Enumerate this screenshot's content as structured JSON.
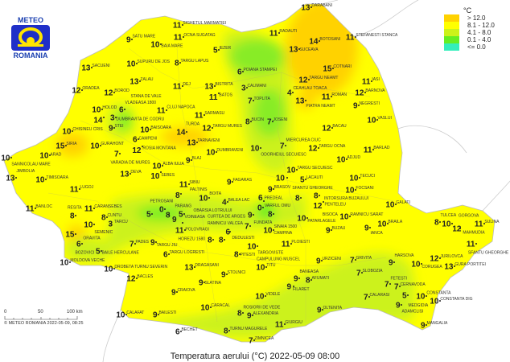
{
  "logo": {
    "top": "METEO",
    "bottom": "ROMANIA"
  },
  "legend": {
    "unit": "°C",
    "classes": [
      {
        "label": "> 12.0",
        "color": "#ffd200"
      },
      {
        "label": "8.1 - 12.0",
        "color": "#ffff00"
      },
      {
        "label": "4.1 - 8.0",
        "color": "#ccf21a"
      },
      {
        "label": "0.1 - 4.0",
        "color": "#66ee22"
      },
      {
        "label": "<= 0.0",
        "color": "#33eebb"
      }
    ]
  },
  "scale": {
    "ticks": [
      "0",
      "50",
      "100 km"
    ],
    "copyright": "© METEO ROMANIA 2022-05-09, 08:25"
  },
  "title": "Temperatura aerului (°C) 2022-05-09 08:00",
  "stations": [
    {
      "name": "SIGHETUL MARMATIEI",
      "value": 11
    },
    {
      "name": "SATU MARE",
      "value": 9
    },
    {
      "name": "BAIA MARE",
      "value": 10
    },
    {
      "name": "OCNA SUGATAG",
      "value": 11
    },
    {
      "name": "SUPURU DE JOS",
      "value": 10
    },
    {
      "name": "IEZER",
      "value": 5
    },
    {
      "name": "TARGU LAPUS",
      "value": 8
    },
    {
      "name": "POIANA STAMPEI",
      "value": 6
    },
    {
      "name": "DARABANI",
      "value": 13
    },
    {
      "name": "RADAUTI",
      "value": 11
    },
    {
      "name": "STEFANESTI STANCA",
      "value": 11
    },
    {
      "name": "BOTOSANI",
      "value": 14
    },
    {
      "name": "SUCEAVA",
      "value": 13
    },
    {
      "name": "COTNARI",
      "value": 15
    },
    {
      "name": "TARGU NEAMT",
      "value": 12
    },
    {
      "name": "IASI",
      "value": 11
    },
    {
      "name": "SACUENI",
      "value": 13
    },
    {
      "name": "ZALAU",
      "value": 13
    },
    {
      "name": "CALIMANI",
      "value": 3
    },
    {
      "name": "ORADEA",
      "value": 12
    },
    {
      "name": "BOROD",
      "value": 12
    },
    {
      "name": "VLADEASA 1800",
      "value": 6
    },
    {
      "name": "DEJ",
      "value": 11
    },
    {
      "name": "BISTRITA",
      "value": 13
    },
    {
      "name": "HOLOD",
      "value": 10
    },
    {
      "name": "DUMBRAVITA DE CODRU",
      "value": 14
    },
    {
      "name": "STANA DE VALE",
      "value": 3
    },
    {
      "name": "STEI",
      "value": 9
    },
    {
      "name": "CHISINEU CRIS",
      "value": 10
    },
    {
      "name": "CLUJ NAPOCA",
      "value": 11
    },
    {
      "name": "BATOS",
      "value": 11
    },
    {
      "name": "SARMASU",
      "value": 11
    },
    {
      "name": "TOPLITA",
      "value": 7
    },
    {
      "name": "CEAHLAU TOACA",
      "value": 4
    },
    {
      "name": "PIATRA NEAMT",
      "value": 13
    },
    {
      "name": "ROMAN",
      "value": 11
    },
    {
      "name": "BARNOVA",
      "value": 12
    },
    {
      "name": "NEGRESTI",
      "value": 9
    },
    {
      "name": "VASLUI",
      "value": 10
    },
    {
      "name": "BUCIN",
      "value": 8
    },
    {
      "name": "JOSENI",
      "value": 7
    },
    {
      "name": "BACAU",
      "value": 12
    },
    {
      "name": "BARLAD",
      "value": 11
    },
    {
      "name": "MIERCUREA CIUC",
      "value": 7
    },
    {
      "name": "ODORHEIUL SECUIESC",
      "value": 10
    },
    {
      "name": "TARGU SECUIESC",
      "value": 10
    },
    {
      "name": "TARGU OCNA",
      "value": 12
    },
    {
      "name": "ADJUD",
      "value": 10
    },
    {
      "name": "SIRIA",
      "value": 15
    },
    {
      "name": "ARAD",
      "value": 10
    },
    {
      "name": "SANNICOLAU MARE",
      "value": 10
    },
    {
      "name": "GURAHONT",
      "value": 10
    },
    {
      "name": "VARADIA DE MURES",
      "value": 7
    },
    {
      "name": "BAISOARA",
      "value": 10
    },
    {
      "name": "TURDA",
      "value": 14
    },
    {
      "name": "TARGU MURES",
      "value": 12
    },
    {
      "name": "TARNAVENI",
      "value": 13
    },
    {
      "name": "CAMPENI",
      "value": 6
    },
    {
      "name": "ROSIA MONTANA",
      "value": 12
    },
    {
      "name": "DUMBRAVENI",
      "value": 10
    },
    {
      "name": "BLAJ",
      "value": 9
    },
    {
      "name": "ALBA IULIA",
      "value": 10
    },
    {
      "name": "SEBES",
      "value": 10
    },
    {
      "name": "DEVA",
      "value": 13
    },
    {
      "name": "JIMBOLIA",
      "value": 13
    },
    {
      "name": "TIMISOARA",
      "value": 10
    },
    {
      "name": "LUGOJ",
      "value": 11
    },
    {
      "name": "BANLOC",
      "value": 11
    },
    {
      "name": "CARANSEBES",
      "value": 11
    },
    {
      "name": "RESITA",
      "value": 8
    },
    {
      "name": "CUNTU",
      "value": 8
    },
    {
      "name": "TARCU",
      "value": 3
    },
    {
      "name": "SEMENIC",
      "value": 10
    },
    {
      "name": "ORAVITA",
      "value": 15
    },
    {
      "name": "BOZOVICI",
      "value": 6
    },
    {
      "name": "BAILE HERCULANE",
      "value": 5
    },
    {
      "name": "MOLDOVA VECHE",
      "value": 10
    },
    {
      "name": "DROBETA TURNU SEVERIN",
      "value": 10
    },
    {
      "name": "SIBIU",
      "value": 11
    },
    {
      "name": "PALTINIS",
      "value": 8
    },
    {
      "name": "BOITA",
      "value": 10
    },
    {
      "name": "BALEA LAC",
      "value": 4
    },
    {
      "name": "FAGARAS",
      "value": 9
    },
    {
      "name": "FUNDATA",
      "value": 9
    },
    {
      "name": "VARFUL OMU",
      "value": 0
    },
    {
      "name": "PREDEAL",
      "value": 6
    },
    {
      "name": "SINAIA 1500",
      "value": 8
    },
    {
      "name": "BRASOV",
      "value": 9
    },
    {
      "name": "SFANTU GHEORGHE",
      "value": 10
    },
    {
      "name": "LACAUTI",
      "value": 5
    },
    {
      "name": "INTORSURA BUZAULUI",
      "value": 8
    },
    {
      "name": "PENTELEU",
      "value": 8
    },
    {
      "name": "BISOCA",
      "value": 12
    },
    {
      "name": "FOCSANI",
      "value": 10
    },
    {
      "name": "TECUCI",
      "value": 10
    },
    {
      "name": "RAMNICU SARAT",
      "value": 10
    },
    {
      "name": "PATARLAGELE",
      "value": 10
    },
    {
      "name": "BUZAU",
      "value": 9
    },
    {
      "name": "CAMPINA",
      "value": 10
    },
    {
      "name": "TARGOVISTE",
      "value": 10
    },
    {
      "name": "PLOIESTI",
      "value": 11
    },
    {
      "name": "IANCA",
      "value": 9
    },
    {
      "name": "GALATI",
      "value": 10
    },
    {
      "name": "BRAILA",
      "value": 10
    },
    {
      "name": "TULCEA",
      "value": 8
    },
    {
      "name": "GORGOVA",
      "value": 10
    },
    {
      "name": "MAHMUDIA",
      "value": 12
    },
    {
      "name": "SULINA",
      "value": 11
    },
    {
      "name": "SFANTU GHEORGHE",
      "value": 11
    },
    {
      "name": "JURILOVCA",
      "value": 12
    },
    {
      "name": "GURA PORTITEI",
      "value": 13
    },
    {
      "name": "CORUGEA",
      "value": 10
    },
    {
      "name": "HARSOVA",
      "value": 9
    },
    {
      "name": "FETESTI",
      "value": 7
    },
    {
      "name": "CERNAVODA",
      "value": 7
    },
    {
      "name": "MEDGIDIA",
      "value": 5
    },
    {
      "name": "CONSTANTA",
      "value": 10
    },
    {
      "name": "CONSTANTA DIG",
      "value": 10
    },
    {
      "name": "ADAMCLISI",
      "value": 9
    },
    {
      "name": "MANGALIA",
      "value": 9
    },
    {
      "name": "URZICENI",
      "value": 9
    },
    {
      "name": "GRIVITA",
      "value": 7
    },
    {
      "name": "SLOBOZIA",
      "value": 7
    },
    {
      "name": "CALARASI",
      "value": 7
    },
    {
      "name": "OLTENITA",
      "value": 9
    },
    {
      "name": "GIURGIU",
      "value": 11
    },
    {
      "name": "ALEXANDRIA",
      "value": 9
    },
    {
      "name": "ZIMNICEA",
      "value": 7
    },
    {
      "name": "TURNU MAGURELE",
      "value": 8
    },
    {
      "name": "ROSIORII DE VEDE",
      "value": 8
    },
    {
      "name": "VIDELE",
      "value": 10
    },
    {
      "name": "BANEASA",
      "value": 9
    },
    {
      "name": "AFUMATI",
      "value": 8
    },
    {
      "name": "FILARET",
      "value": 9
    },
    {
      "name": "TITU",
      "value": 10
    },
    {
      "name": "PITESTI",
      "value": 8
    },
    {
      "name": "STOLNICI",
      "value": 9
    },
    {
      "name": "DRAGASANI",
      "value": 13
    },
    {
      "name": "SLATINA",
      "value": 9
    },
    {
      "name": "CARACAL",
      "value": 10
    },
    {
      "name": "CRAIOVA",
      "value": 9
    },
    {
      "name": "BECHET",
      "value": 6
    },
    {
      "name": "BAILESTI",
      "value": 9
    },
    {
      "name": "CALAFAT",
      "value": 10
    },
    {
      "name": "BACLES",
      "value": 12
    },
    {
      "name": "RAMNICU VALCEA",
      "value": 8
    },
    {
      "name": "DEDULESTI",
      "value": 8
    },
    {
      "name": "CURTEA DE ARGES",
      "value": 6
    },
    {
      "name": "CAMPULUNG MUSCEL",
      "value": 7
    },
    {
      "name": "POLOVRAGI",
      "value": 11
    },
    {
      "name": "PETROSANI",
      "value": 5
    },
    {
      "name": "PARANG",
      "value": 0
    },
    {
      "name": "OBARSIA LOTRULUI",
      "value": 8
    },
    {
      "name": "VOINEASA",
      "value": 5
    },
    {
      "name": "HOREZU 1580",
      "value": 9
    },
    {
      "name": "TARGU JIU",
      "value": 9
    },
    {
      "name": "TARGU LOGRESTI",
      "value": 6
    },
    {
      "name": "PADES",
      "value": 7
    }
  ]
}
